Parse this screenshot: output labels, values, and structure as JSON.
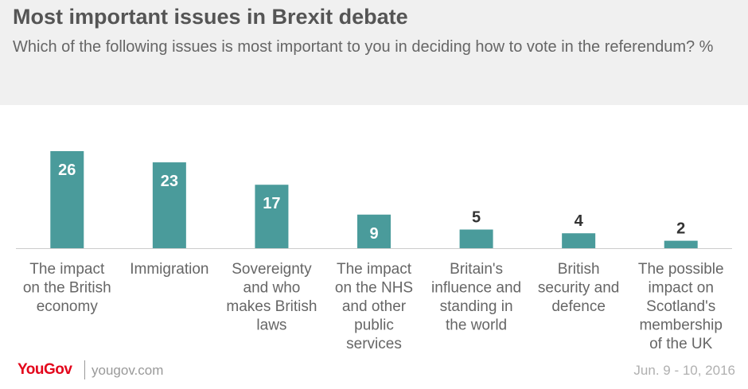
{
  "chart_data": {
    "type": "bar",
    "title": "Most important issues in Brexit debate",
    "subtitle": "Which of the following issues is most important to you in deciding how to vote in the referendum? %",
    "categories": [
      [
        "The impact",
        "on the British",
        "economy"
      ],
      [
        "Immigration"
      ],
      [
        "Sovereignty",
        "and who",
        "makes British",
        "laws"
      ],
      [
        "The impact",
        "on the NHS",
        "and other",
        "public",
        "services"
      ],
      [
        "Britain's",
        "influence and",
        "standing in",
        "the world"
      ],
      [
        "British",
        "security and",
        "defence"
      ],
      [
        "The possible",
        "impact on",
        "Scotland's",
        "membership",
        "of the UK"
      ]
    ],
    "values": [
      26,
      23,
      17,
      9,
      5,
      4,
      2
    ],
    "value_label_inside": [
      true,
      true,
      true,
      true,
      false,
      false,
      false
    ],
    "ylim": [
      0,
      26
    ],
    "grid": false,
    "bar_color": "#4a9b9b"
  },
  "footer": {
    "logo": "YouGov",
    "site": "yougov.com",
    "date": "Jun. 9 - 10, 2016"
  }
}
